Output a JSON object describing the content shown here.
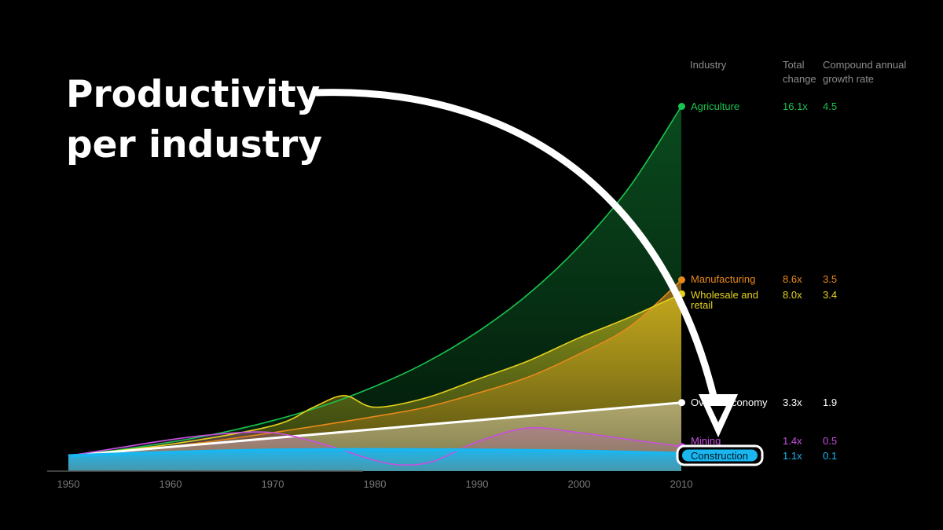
{
  "title_lines": [
    "Productivity",
    "per industry"
  ],
  "chart_data": {
    "type": "area",
    "x_ticks": [
      1950,
      1960,
      1970,
      1980,
      1990,
      2000,
      2010
    ],
    "xlim": [
      1950,
      2010
    ],
    "ylim": [
      0,
      17
    ],
    "columns": {
      "industry": "Industry",
      "total_change": [
        "Total",
        "change"
      ],
      "cagr": [
        "Compound annual",
        "growth rate"
      ]
    },
    "series": [
      {
        "name": "Agriculture",
        "label_lines": [
          "Agriculture"
        ],
        "total_change": "16.1x",
        "cagr": "4.5",
        "color": "#19c44f",
        "x": [
          1950,
          1955,
          1960,
          1965,
          1970,
          1975,
          1980,
          1985,
          1990,
          1995,
          2000,
          2005,
          2010
        ],
        "values": [
          1.0,
          1.26,
          1.59,
          2.0,
          2.52,
          3.17,
          4.0,
          5.03,
          6.34,
          7.98,
          10.05,
          12.66,
          16.1
        ]
      },
      {
        "name": "Manufacturing",
        "label_lines": [
          "Manufacturing"
        ],
        "total_change": "8.6x",
        "cagr": "3.5",
        "color": "#e8891c",
        "x": [
          1950,
          1960,
          1970,
          1980,
          1985,
          1990,
          1995,
          2000,
          2005,
          2010
        ],
        "values": [
          1.0,
          1.4,
          2.0,
          2.7,
          3.1,
          3.7,
          4.4,
          5.4,
          6.6,
          8.6
        ]
      },
      {
        "name": "Wholesale and retail",
        "label_lines": [
          "Wholesale and",
          "retail"
        ],
        "total_change": "8.0x",
        "cagr": "3.4",
        "color": "#e6d11e",
        "x": [
          1950,
          1960,
          1970,
          1974,
          1977,
          1980,
          1985,
          1990,
          1995,
          2000,
          2005,
          2010
        ],
        "values": [
          1.0,
          1.5,
          2.3,
          3.1,
          3.6,
          3.1,
          3.5,
          4.3,
          5.1,
          6.1,
          7.0,
          8.0
        ]
      },
      {
        "name": "Overall economy",
        "label_lines": [
          "Overall economy"
        ],
        "total_change": "3.3x",
        "cagr": "1.9",
        "color": "#ffffff",
        "x": [
          1950,
          2010
        ],
        "values": [
          1.0,
          3.3
        ]
      },
      {
        "name": "Mining",
        "label_lines": [
          "Mining"
        ],
        "total_change": "1.4x",
        "cagr": "0.5",
        "color": "#c84fe0",
        "x": [
          1950,
          1955,
          1960,
          1965,
          1970,
          1975,
          1980,
          1983,
          1986,
          1990,
          1995,
          2000,
          2005,
          2010
        ],
        "values": [
          1.0,
          1.35,
          1.7,
          1.95,
          2.0,
          1.5,
          0.8,
          0.6,
          0.8,
          1.6,
          2.2,
          2.0,
          1.7,
          1.4
        ]
      },
      {
        "name": "Construction",
        "label_lines": [
          "Construction"
        ],
        "total_change": "1.1x",
        "cagr": "0.1",
        "color": "#19b6f0",
        "x": [
          1950,
          1960,
          1970,
          1980,
          1990,
          2000,
          2010
        ],
        "values": [
          1.0,
          1.15,
          1.25,
          1.27,
          1.25,
          1.2,
          1.1
        ],
        "highlighted": true
      }
    ]
  }
}
